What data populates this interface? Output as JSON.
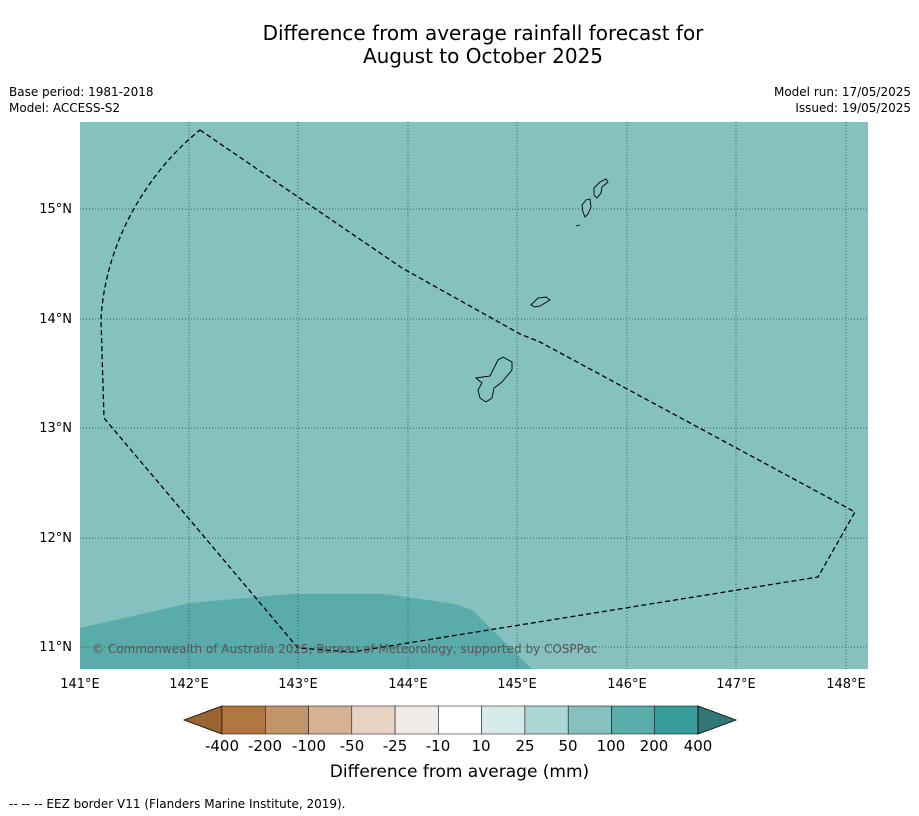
{
  "title_line1": "Difference from average rainfall forecast for",
  "title_line2": "August to October 2025",
  "base_period": "Base period: 1981-2018",
  "model": "Model: ACCESS-S2",
  "model_run": "Model run: 17/05/2025",
  "issued": "Issued: 19/05/2025",
  "copyright": "© Commonwealth of Australia 2025, Bureau of Meteorology, supported by COSPPac",
  "lon_ticks": [
    "141°E",
    "142°E",
    "143°E",
    "144°E",
    "145°E",
    "146°E",
    "147°E",
    "148°E"
  ],
  "lat_ticks": [
    "15°N",
    "14°N",
    "13°N",
    "12°N",
    "11°N"
  ],
  "colorbar": {
    "title": "Difference from average (mm)",
    "labels": [
      "-400",
      "-200",
      "-100",
      "-50",
      "-25",
      "-10",
      "10",
      "25",
      "50",
      "100",
      "200",
      "400"
    ],
    "colors": [
      "#9a6430",
      "#b07840",
      "#c2946a",
      "#d4b292",
      "#e8d3c2",
      "#efebe8",
      "#ffffff",
      "#d4ebe9",
      "#a9d6d4",
      "#84c1bf",
      "#5aacab",
      "#379b99",
      "#337878"
    ]
  },
  "map_colors": {
    "ocean": "#84c1bf",
    "high": "#5aacab"
  },
  "eez_note": "--  --  -- EEZ border V11 (Flanders Marine Institute, 2019)."
}
